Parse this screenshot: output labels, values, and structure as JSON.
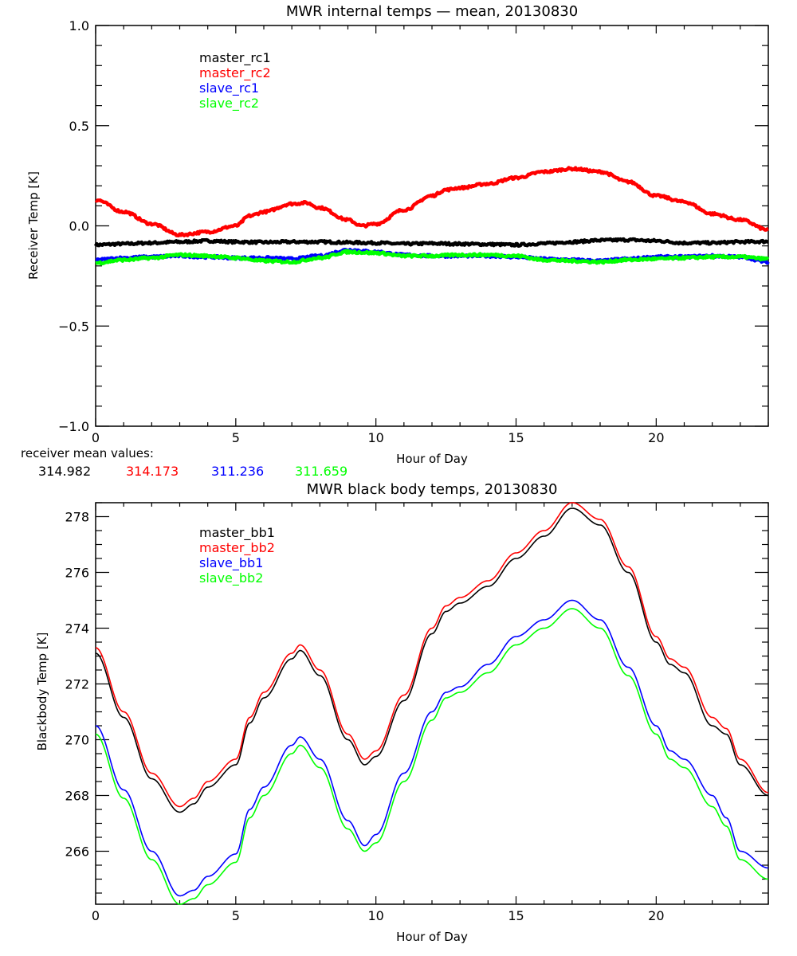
{
  "chart_data": [
    {
      "type": "line",
      "title": "MWR internal temps — mean, 20130830",
      "xlabel": "Hour of Day",
      "ylabel": "Receiver Temp [K]",
      "xlim": [
        0,
        24
      ],
      "ylim": [
        -1.0,
        1.0
      ],
      "xticks": [
        0,
        5,
        10,
        15,
        20
      ],
      "xtick_labels": [
        "0",
        "5",
        "10",
        "15",
        "20"
      ],
      "yticks": [
        -1.0,
        -0.5,
        0.0,
        0.5,
        1.0
      ],
      "ytick_labels": [
        "−1.0",
        "−0.5",
        "0.0",
        "0.5",
        "1.0"
      ],
      "x_minor_step": 1,
      "y_minor_step": 0.1,
      "grid": false,
      "legend_position": "top-left",
      "series": [
        {
          "name": "master_rc1",
          "color": "#000000",
          "noisy": true,
          "x": [
            0,
            1,
            2,
            3,
            4,
            5,
            6,
            7,
            8,
            9,
            10,
            11,
            12,
            13,
            14,
            15,
            16,
            17,
            18,
            19,
            20,
            21,
            22,
            23,
            24
          ],
          "y": [
            -0.095,
            -0.09,
            -0.085,
            -0.08,
            -0.075,
            -0.08,
            -0.082,
            -0.08,
            -0.08,
            -0.083,
            -0.085,
            -0.09,
            -0.088,
            -0.09,
            -0.092,
            -0.095,
            -0.088,
            -0.08,
            -0.072,
            -0.07,
            -0.075,
            -0.085,
            -0.085,
            -0.08,
            -0.078
          ]
        },
        {
          "name": "master_rc2",
          "color": "#ff0000",
          "noisy": true,
          "x": [
            0,
            1,
            2,
            3,
            4,
            5,
            5.5,
            6,
            7,
            7.5,
            8,
            9,
            9.5,
            10,
            11,
            12,
            12.5,
            13,
            14,
            15,
            16,
            17,
            18,
            19,
            20,
            21,
            22,
            23,
            24
          ],
          "y": [
            0.13,
            0.07,
            0.01,
            -0.045,
            -0.03,
            0.0,
            0.05,
            0.07,
            0.11,
            0.115,
            0.09,
            0.03,
            0.0,
            0.01,
            0.08,
            0.15,
            0.18,
            0.19,
            0.21,
            0.24,
            0.27,
            0.285,
            0.27,
            0.22,
            0.15,
            0.12,
            0.06,
            0.03,
            -0.02
          ]
        },
        {
          "name": "slave_rc1",
          "color": "#0000ff",
          "noisy": true,
          "x": [
            0,
            1,
            2,
            3,
            4,
            5,
            6,
            7,
            8,
            9,
            10,
            11,
            12,
            13,
            14,
            15,
            16,
            17,
            18,
            19,
            20,
            21,
            22,
            23,
            24
          ],
          "y": [
            -0.17,
            -0.16,
            -0.155,
            -0.15,
            -0.155,
            -0.16,
            -0.16,
            -0.165,
            -0.15,
            -0.12,
            -0.13,
            -0.145,
            -0.15,
            -0.15,
            -0.15,
            -0.155,
            -0.165,
            -0.17,
            -0.175,
            -0.165,
            -0.155,
            -0.155,
            -0.15,
            -0.155,
            -0.18
          ]
        },
        {
          "name": "slave_rc2",
          "color": "#00ff00",
          "noisy": true,
          "x": [
            0,
            1,
            2,
            3,
            4,
            5,
            6,
            7,
            8,
            9,
            10,
            11,
            12,
            13,
            14,
            15,
            16,
            17,
            18,
            19,
            20,
            21,
            22,
            23,
            24
          ],
          "y": [
            -0.185,
            -0.17,
            -0.16,
            -0.145,
            -0.15,
            -0.16,
            -0.175,
            -0.18,
            -0.16,
            -0.13,
            -0.135,
            -0.15,
            -0.15,
            -0.145,
            -0.145,
            -0.15,
            -0.17,
            -0.175,
            -0.18,
            -0.17,
            -0.165,
            -0.16,
            -0.155,
            -0.155,
            -0.165
          ]
        }
      ],
      "annotation": {
        "label": "receiver mean values:",
        "values": [
          {
            "text": "314.982",
            "color": "#000000"
          },
          {
            "text": "314.173",
            "color": "#ff0000"
          },
          {
            "text": "311.236",
            "color": "#0000ff"
          },
          {
            "text": "311.659",
            "color": "#00ff00"
          }
        ]
      }
    },
    {
      "type": "line",
      "title": "MWR black body temps, 20130830",
      "xlabel": "Hour of Day",
      "ylabel": "Blackbody Temp [K]",
      "xlim": [
        0,
        24
      ],
      "ylim": [
        264.1,
        278.5
      ],
      "xticks": [
        0,
        5,
        10,
        15,
        20
      ],
      "xtick_labels": [
        "0",
        "5",
        "10",
        "15",
        "20"
      ],
      "yticks": [
        266,
        268,
        270,
        272,
        274,
        276,
        278
      ],
      "ytick_labels": [
        "266",
        "268",
        "270",
        "272",
        "274",
        "276",
        "278"
      ],
      "x_minor_step": 1,
      "y_minor_step": 0.5,
      "grid": false,
      "legend_position": "top-left",
      "series": [
        {
          "name": "master_bb1",
          "color": "#000000",
          "noisy": false,
          "x": [
            0,
            1,
            2,
            3,
            3.5,
            4,
            5,
            5.5,
            6,
            7,
            7.3,
            8,
            9,
            9.6,
            10,
            11,
            12,
            12.5,
            13,
            14,
            15,
            16,
            17,
            18,
            19,
            20,
            20.5,
            21,
            22,
            22.5,
            23,
            24
          ],
          "y": [
            273.1,
            270.8,
            268.6,
            267.4,
            267.7,
            268.3,
            269.1,
            270.6,
            271.5,
            272.9,
            273.2,
            272.3,
            270.0,
            269.1,
            269.4,
            271.4,
            273.8,
            274.6,
            274.9,
            275.5,
            276.5,
            277.3,
            278.3,
            277.7,
            276.0,
            273.5,
            272.7,
            272.4,
            270.5,
            270.2,
            269.1,
            268.0
          ]
        },
        {
          "name": "master_bb2",
          "color": "#ff0000",
          "noisy": false,
          "x": [
            0,
            1,
            2,
            3,
            3.5,
            4,
            5,
            5.5,
            6,
            7,
            7.3,
            8,
            9,
            9.6,
            10,
            11,
            12,
            12.5,
            13,
            14,
            15,
            16,
            17,
            18,
            19,
            20,
            20.5,
            21,
            22,
            22.5,
            23,
            24
          ],
          "y": [
            273.3,
            271.0,
            268.8,
            267.6,
            267.9,
            268.5,
            269.3,
            270.8,
            271.7,
            273.1,
            273.4,
            272.5,
            270.2,
            269.3,
            269.6,
            271.6,
            274.0,
            274.8,
            275.1,
            275.7,
            276.7,
            277.5,
            278.5,
            277.9,
            276.2,
            273.7,
            272.9,
            272.6,
            270.8,
            270.4,
            269.3,
            268.1
          ]
        },
        {
          "name": "slave_bb1",
          "color": "#0000ff",
          "noisy": false,
          "x": [
            0,
            1,
            2,
            3,
            3.5,
            4,
            5,
            5.5,
            6,
            7,
            7.3,
            8,
            9,
            9.6,
            10,
            11,
            12,
            12.5,
            13,
            14,
            15,
            16,
            17,
            18,
            19,
            20,
            20.5,
            21,
            22,
            22.5,
            23,
            24
          ],
          "y": [
            270.5,
            268.2,
            266.0,
            264.4,
            264.6,
            265.1,
            265.9,
            267.5,
            268.3,
            269.8,
            270.1,
            269.3,
            267.1,
            266.2,
            266.6,
            268.8,
            271.0,
            271.7,
            271.9,
            272.7,
            273.7,
            274.3,
            275.0,
            274.3,
            272.6,
            270.5,
            269.6,
            269.3,
            268.0,
            267.2,
            266.0,
            265.4
          ]
        },
        {
          "name": "slave_bb2",
          "color": "#00ff00",
          "noisy": false,
          "x": [
            0,
            1,
            2,
            3,
            3.5,
            4,
            5,
            5.5,
            6,
            7,
            7.3,
            8,
            9,
            9.6,
            10,
            11,
            12,
            12.5,
            13,
            14,
            15,
            16,
            17,
            18,
            19,
            20,
            20.5,
            21,
            22,
            22.5,
            23,
            24
          ],
          "y": [
            270.2,
            267.9,
            265.7,
            264.1,
            264.3,
            264.8,
            265.6,
            267.2,
            268.0,
            269.5,
            269.8,
            269.0,
            266.8,
            266.0,
            266.3,
            268.5,
            270.7,
            271.5,
            271.7,
            272.4,
            273.4,
            274.0,
            274.7,
            274.0,
            272.3,
            270.2,
            269.3,
            269.0,
            267.6,
            266.9,
            265.7,
            265.0
          ]
        }
      ]
    }
  ]
}
